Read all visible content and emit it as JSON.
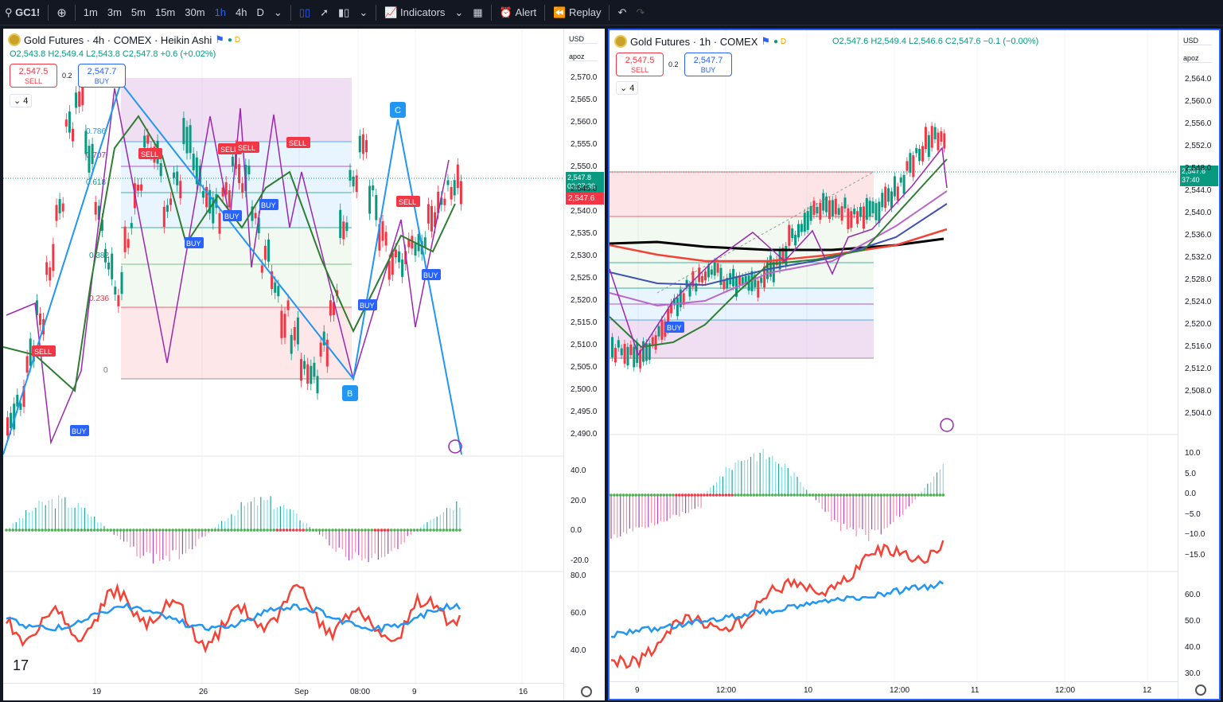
{
  "toolbar": {
    "symbol": "GC1!",
    "intervals": [
      "1m",
      "3m",
      "5m",
      "15m",
      "30m",
      "1h",
      "4h",
      "D"
    ],
    "active_interval": "1h",
    "indicators_label": "Indicators",
    "alert_label": "Alert",
    "replay_label": "Replay"
  },
  "left": {
    "title": "Gold Futures · 4h · COMEX · Heikin Ashi",
    "badge": "D",
    "ohlc": "O2,543.8 H2,549.4 L2,543.8 C2,547.8 +0.6 (+0.02%)",
    "sell_price": "2,547.5",
    "sell_label": "SELL",
    "spread": "0.2",
    "buy_price": "2,547.7",
    "buy_label": "BUY",
    "layers": "4",
    "currency": "USD",
    "scale": "apoz",
    "price_ticks": [
      "2,570.0",
      "2,565.0",
      "2,560.0",
      "2,555.0",
      "2,550.0",
      "2,545.0",
      "2,540.0",
      "2,535.0",
      "2,530.0",
      "2,525.0",
      "2,520.0",
      "2,515.0",
      "2,510.0",
      "2,505.0",
      "2,500.0",
      "2,495.0",
      "2,490.0"
    ],
    "current_price": "2,547.8",
    "countdown": "03:37:39",
    "red_price": "2,547.6",
    "fib_labels": [
      "0.786",
      "0.707",
      "0.618",
      "0.382",
      "0.236",
      "0"
    ],
    "pattern_points": [
      "C",
      "B"
    ],
    "osc_ticks": [
      "40.0",
      "20.0",
      "0.0",
      "-20.0"
    ],
    "rsi_ticks": [
      "80.0",
      "60.0",
      "40.0"
    ],
    "time_ticks": [
      "19",
      "26",
      "Sep",
      "08:00",
      "9",
      "16"
    ]
  },
  "right": {
    "title": "Gold Futures · 1h · COMEX",
    "badge": "D",
    "ohlc": "O2,547.6 H2,549.4 L2,546.6 C2,547.6 −0.1 (−0.00%)",
    "sell_price": "2,547.5",
    "sell_label": "SELL",
    "spread": "0.2",
    "buy_price": "2,547.7",
    "buy_label": "BUY",
    "layers": "4",
    "currency": "USD",
    "scale": "apoz",
    "price_ticks": [
      "2,564.0",
      "2,560.0",
      "2,556.0",
      "2,552.0",
      "2,548.0",
      "2,544.0",
      "2,540.0",
      "2,536.0",
      "2,532.0",
      "2,528.0",
      "2,524.0",
      "2,520.0",
      "2,516.0",
      "2,512.0",
      "2,508.0",
      "2,504.0"
    ],
    "current_price": "2,547.6",
    "countdown": "37:40",
    "osc_ticks": [
      "10.0",
      "5.0",
      "0.0",
      "−5.0",
      "−10.0",
      "−15.0"
    ],
    "rsi_ticks": [
      "60.0",
      "50.0",
      "40.0",
      "30.0"
    ],
    "time_ticks": [
      "9",
      "12:00",
      "10",
      "12:00",
      "11",
      "12:00",
      "12"
    ]
  },
  "signals": {
    "buy": "BUY",
    "sell": "SELL"
  },
  "colors": {
    "up": "#089981",
    "down": "#f23645",
    "accent": "#2962ff",
    "purple": "#9c27b0",
    "fib_blue": "#2196f3"
  }
}
